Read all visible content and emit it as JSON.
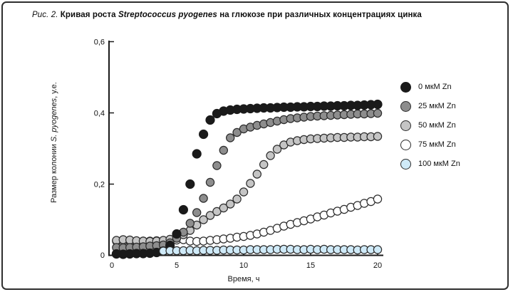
{
  "figure": {
    "title_prefix": "Рис. 2.",
    "title_text_1": " Кривая роста ",
    "title_species": "Streptococcus pyogenes",
    "title_text_2": " на глюкозе при различных концентрациях цинка"
  },
  "chart_data": {
    "type": "scatter",
    "title": "Рис. 2. Кривая роста Streptococcus pyogenes на глюкозе при различных концентрациях цинка",
    "xlabel": "Время, ч",
    "ylabel": "Размер колонии S. pyogenes, у.е.",
    "ylabel_prefix": "Размер колонии ",
    "ylabel_species": "S. pyogenes",
    "ylabel_suffix": ", у.е.",
    "xlim": [
      0,
      20.4
    ],
    "ylim": [
      0,
      0.61
    ],
    "grid": false,
    "legend_position": "right",
    "x_ticks": [
      0,
      5,
      10,
      15,
      20
    ],
    "x_tick_labels": [
      "0",
      "5",
      "10",
      "15",
      "20"
    ],
    "y_ticks": [
      0,
      0.2,
      0.4,
      0.6
    ],
    "y_tick_labels": [
      "0",
      "0,2",
      "0,4",
      "0,6"
    ],
    "axis_color": "#1a1a1a",
    "draw_order": [
      "zn-75",
      "zn-50",
      "zn-25",
      "zn-0",
      "zn-100"
    ],
    "series": [
      {
        "key": "zn-0",
        "name": "0 мкМ Zn",
        "fill": "#1a1a1a",
        "stroke": "#1a1a1a",
        "radius": 6,
        "x_start": 0.5,
        "x_step": 0.5,
        "values": [
          0.004,
          0.003,
          0.004,
          0.005,
          0.005,
          0.006,
          0.008,
          0.012,
          0.028,
          0.06,
          0.128,
          0.2,
          0.285,
          0.34,
          0.38,
          0.398,
          0.405,
          0.408,
          0.41,
          0.411,
          0.412,
          0.413,
          0.414,
          0.414,
          0.415,
          0.416,
          0.416,
          0.417,
          0.417,
          0.418,
          0.418,
          0.419,
          0.419,
          0.42,
          0.42,
          0.421,
          0.421,
          0.422,
          0.423,
          0.424
        ]
      },
      {
        "key": "zn-25",
        "name": "25 мкМ Zn",
        "fill": "#8d8d8d",
        "stroke": "#2b2b2b",
        "radius": 5.6,
        "x_start": 0.5,
        "x_step": 0.5,
        "values": [
          0.022,
          0.021,
          0.022,
          0.023,
          0.024,
          0.026,
          0.027,
          0.029,
          0.035,
          0.048,
          0.065,
          0.09,
          0.12,
          0.16,
          0.205,
          0.252,
          0.295,
          0.33,
          0.345,
          0.355,
          0.36,
          0.365,
          0.369,
          0.373,
          0.377,
          0.381,
          0.384,
          0.386,
          0.388,
          0.39,
          0.391,
          0.392,
          0.393,
          0.394,
          0.395,
          0.396,
          0.397,
          0.397,
          0.398,
          0.399
        ]
      },
      {
        "key": "zn-50",
        "name": "50 мкМ Zn",
        "fill": "#c5c5c5",
        "stroke": "#2b2b2b",
        "radius": 5.6,
        "x_start": 0.5,
        "x_step": 0.5,
        "values": [
          0.042,
          0.044,
          0.043,
          0.041,
          0.04,
          0.039,
          0.04,
          0.042,
          0.045,
          0.05,
          0.058,
          0.07,
          0.085,
          0.1,
          0.112,
          0.123,
          0.133,
          0.144,
          0.158,
          0.178,
          0.202,
          0.228,
          0.255,
          0.28,
          0.298,
          0.31,
          0.318,
          0.322,
          0.325,
          0.327,
          0.328,
          0.329,
          0.33,
          0.331,
          0.331,
          0.332,
          0.332,
          0.333,
          0.333,
          0.334
        ]
      },
      {
        "key": "zn-75",
        "name": "75 мкМ Zn",
        "fill": "#ffffff",
        "stroke": "#2b2b2b",
        "radius": 5.6,
        "x_start": 0.5,
        "x_step": 0.5,
        "values": [
          0.04,
          0.04,
          0.039,
          0.04,
          0.04,
          0.04,
          0.041,
          0.041,
          0.042,
          0.043,
          0.044,
          0.04,
          0.039,
          0.04,
          0.042,
          0.044,
          0.046,
          0.048,
          0.051,
          0.053,
          0.056,
          0.06,
          0.065,
          0.07,
          0.076,
          0.082,
          0.087,
          0.092,
          0.097,
          0.102,
          0.108,
          0.113,
          0.119,
          0.124,
          0.129,
          0.135,
          0.14,
          0.146,
          0.151,
          0.158
        ]
      },
      {
        "key": "zn-100",
        "name": "100 мкМ Zn",
        "fill": "#cfeaf8",
        "stroke": "#2b2b2b",
        "radius": 5.6,
        "x_start": 4.0,
        "x_step": 0.5,
        "values": [
          0.012,
          0.013,
          0.013,
          0.013,
          0.014,
          0.013,
          0.014,
          0.014,
          0.014,
          0.015,
          0.015,
          0.015,
          0.015,
          0.016,
          0.016,
          0.016,
          0.016,
          0.017,
          0.017,
          0.017,
          0.016,
          0.016,
          0.017,
          0.016,
          0.017,
          0.016,
          0.016,
          0.016,
          0.016,
          0.015,
          0.016,
          0.016,
          0.016
        ]
      }
    ]
  }
}
